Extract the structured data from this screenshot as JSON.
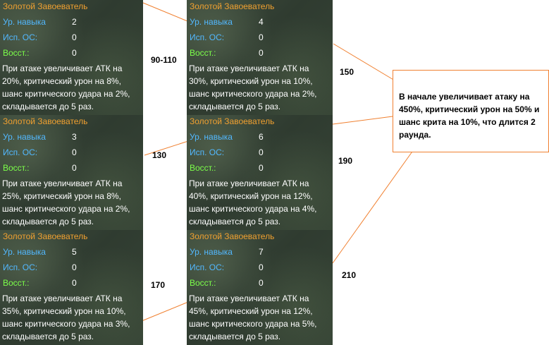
{
  "labels": {
    "skill_level": "Ур. навыка",
    "use_os": "Исп. ОС:",
    "restore": "Восст.:"
  },
  "panels": [
    {
      "title": "Золотой Завоеватель",
      "skill_level": "2",
      "use_os": "0",
      "restore": "0",
      "description": "При атаке увеличивает АТК на 20%, критический урон на 8%, шанс критического удара на 2%, складывается до 5 раз."
    },
    {
      "title": "Золотой Завоеватель",
      "skill_level": "4",
      "use_os": "0",
      "restore": "0",
      "description": "При атаке увеличивает АТК на 30%, критический урон на 10%, шанс критического удара на 2%, складывается до 5 раз."
    },
    {
      "title": "Золотой Завоеватель",
      "skill_level": "3",
      "use_os": "0",
      "restore": "0",
      "description": "При атаке увеличивает АТК на 25%, критический урон на 8%, шанс критического удара на 2%, складывается до 5 раз."
    },
    {
      "title": "Золотой Завоеватель",
      "skill_level": "6",
      "use_os": "0",
      "restore": "0",
      "description": "При атаке увеличивает АТК на 40%, критический урон на 12%, шанс критического удара на 4%, складывается до 5 раз."
    },
    {
      "title": "Золотой Завоеватель",
      "skill_level": "5",
      "use_os": "0",
      "restore": "0",
      "description": "При атаке увеличивает АТК на 35%, критический урон на 10%, шанс критического удара на 3%, складывается до 5 раз."
    },
    {
      "title": "Золотой Завоеватель",
      "skill_level": "7",
      "use_os": "0",
      "restore": "0",
      "description": "При атаке увеличивает АТК на 45%, критический урон на 12%, шанс критического удара на 5%, складывается до 5 раз."
    }
  ],
  "costs": [
    "90-110",
    "150",
    "130",
    "190",
    "170",
    "210"
  ],
  "callout": {
    "text": "В начале увеличивает атаку на 450%, критический урон на 50% и шанс крита на 10%, что длится 2 раунда."
  },
  "colors": {
    "title": "#f0a030",
    "label_blue": "#52b8ff",
    "label_green": "#7cff4a",
    "connector": "#f08030"
  }
}
